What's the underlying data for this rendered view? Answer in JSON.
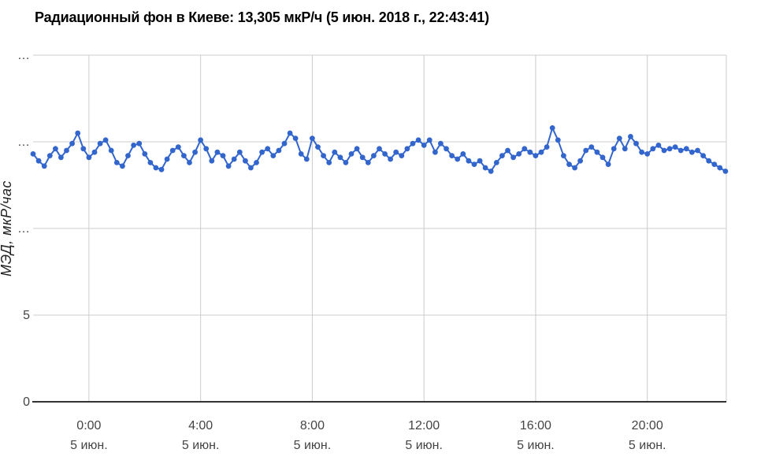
{
  "chart_data": {
    "type": "line",
    "title": "Радиационный фон в Киеве: 13,305 мкР/ч (5 июн. 2018 г., 22:43:41)",
    "xlabel": "",
    "ylabel": "МЭД, мкР/час",
    "current_value": "13,305 мкР/ч",
    "current_timestamp": "5 июн. 2018 г., 22:43:41",
    "legend": "none",
    "grid": true,
    "point_color": "#3366CC",
    "ylim": [
      0,
      20
    ],
    "xlim": [
      -2,
      22.83
    ],
    "x_unit": "hours relative to midnight 5 июн.",
    "y_ticks": [
      {
        "value": 0,
        "label": "0"
      },
      {
        "value": 5,
        "label": "5"
      },
      {
        "value": 10,
        "label": "…"
      },
      {
        "value": 15,
        "label": "…"
      },
      {
        "value": 20,
        "label": "…"
      }
    ],
    "x_ticks": [
      {
        "hour": 0,
        "label": "0:00",
        "sublabel": "5 июн."
      },
      {
        "hour": 4,
        "label": "4:00",
        "sublabel": "5 июн."
      },
      {
        "hour": 8,
        "label": "8:00",
        "sublabel": "5 июн."
      },
      {
        "hour": 12,
        "label": "12:00",
        "sublabel": "5 июн."
      },
      {
        "hour": 16,
        "label": "16:00",
        "sublabel": "5 июн."
      },
      {
        "hour": 20,
        "label": "20:00",
        "sublabel": "5 июн."
      }
    ],
    "series": [
      {
        "name": "МЭД, мкР/час",
        "start_hour": -2.0,
        "interval_hours": 0.2,
        "values": [
          14.3,
          13.9,
          13.6,
          14.2,
          14.6,
          14.1,
          14.5,
          14.9,
          15.5,
          14.6,
          14.1,
          14.4,
          14.9,
          15.1,
          14.5,
          13.8,
          13.6,
          14.2,
          14.8,
          14.9,
          14.3,
          13.8,
          13.5,
          13.4,
          14.0,
          14.5,
          14.7,
          14.2,
          13.8,
          14.4,
          15.1,
          14.6,
          13.9,
          14.4,
          14.2,
          13.6,
          14.0,
          14.4,
          13.9,
          13.5,
          13.8,
          14.4,
          14.6,
          14.2,
          14.5,
          14.9,
          15.5,
          15.2,
          14.3,
          14.0,
          15.2,
          14.7,
          14.2,
          13.8,
          14.4,
          14.1,
          13.8,
          14.3,
          14.6,
          14.1,
          13.8,
          14.2,
          14.6,
          14.3,
          14.0,
          14.4,
          14.2,
          14.6,
          14.9,
          15.1,
          14.8,
          15.1,
          14.4,
          14.9,
          14.6,
          14.2,
          14.0,
          14.3,
          13.9,
          13.7,
          13.9,
          13.5,
          13.3,
          13.8,
          14.2,
          14.5,
          14.1,
          14.3,
          14.6,
          14.4,
          14.2,
          14.4,
          14.7,
          15.8,
          15.1,
          14.2,
          13.7,
          13.5,
          13.9,
          14.5,
          14.7,
          14.4,
          14.1,
          13.7,
          14.6,
          15.2,
          14.6,
          15.3,
          14.9,
          14.4,
          14.3,
          14.6,
          14.8,
          14.5,
          14.6,
          14.7,
          14.5,
          14.6,
          14.4,
          14.5,
          14.2,
          13.9,
          13.7,
          13.5,
          13.3
        ]
      }
    ]
  },
  "colors": {
    "accent": "#3366CC",
    "grid": "#cccccc",
    "axis_line": "#333333",
    "tick_text": "#444444",
    "title_text": "#000000"
  }
}
